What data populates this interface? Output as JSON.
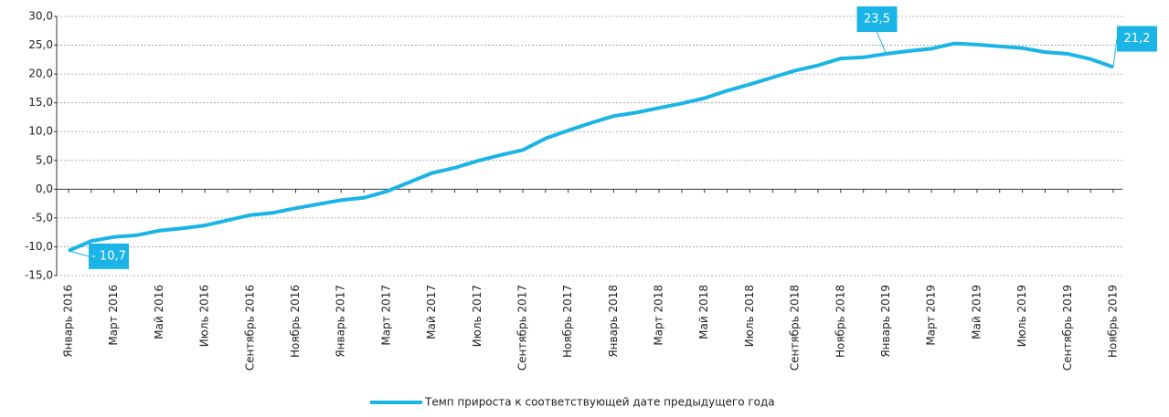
{
  "chart_data": {
    "type": "line",
    "categories": [
      "Январь 2016",
      null,
      "Март 2016",
      null,
      "Май 2016",
      null,
      "Июль 2016",
      null,
      "Сентябрь 2016",
      null,
      "Ноябрь 2016",
      null,
      "Январь 2017",
      null,
      "Март 2017",
      null,
      "Май 2017",
      null,
      "Июль 2017",
      null,
      "Сентябрь 2017",
      null,
      "Ноябрь 2017",
      null,
      "Январь 2018",
      null,
      "Март 2018",
      null,
      "Май 2018",
      null,
      "Июль 2018",
      null,
      "Сентябрь 2018",
      null,
      "Ноябрь 2018",
      null,
      "Январь 2019",
      null,
      "Март 2019",
      null,
      "Май 2019",
      null,
      "Июль 2019",
      null,
      "Сентябрь 2019",
      null,
      "Ноябрь 2019"
    ],
    "series": [
      {
        "name": "Темп прироста к соответствующей дате предыдущего года",
        "color": "#1ab4e6",
        "values": [
          -10.7,
          -9.0,
          -8.3,
          -8.0,
          -7.2,
          -6.8,
          -6.3,
          -5.4,
          -4.5,
          -4.1,
          -3.3,
          -2.6,
          -1.9,
          -1.5,
          -0.4,
          1.2,
          2.8,
          3.7,
          4.9,
          5.9,
          6.8,
          8.8,
          10.2,
          11.5,
          12.7,
          13.3,
          14.1,
          14.9,
          15.8,
          17.1,
          18.2,
          19.4,
          20.6,
          21.5,
          22.7,
          22.9,
          23.5,
          24.0,
          24.4,
          25.3,
          25.1,
          24.8,
          24.5,
          23.8,
          23.5,
          22.6,
          21.2
        ],
        "value_labels": [
          "- 10,7",
          null,
          null,
          null,
          null,
          null,
          null,
          null,
          null,
          null,
          null,
          null,
          null,
          null,
          null,
          null,
          null,
          null,
          null,
          null,
          null,
          null,
          null,
          null,
          null,
          null,
          null,
          null,
          null,
          null,
          null,
          null,
          null,
          null,
          null,
          null,
          "23,5",
          null,
          null,
          null,
          null,
          null,
          null,
          null,
          null,
          null,
          "21,2"
        ]
      }
    ],
    "ylim": [
      -15,
      30
    ],
    "yticks": [
      {
        "value": -15,
        "label": "-15,0"
      },
      {
        "value": -10,
        "label": "-10,0"
      },
      {
        "value": -5,
        "label": "-5,0"
      },
      {
        "value": 0,
        "label": "0,0"
      },
      {
        "value": 5,
        "label": "5,0"
      },
      {
        "value": 10,
        "label": "10,0"
      },
      {
        "value": 15,
        "label": "15,0"
      },
      {
        "value": 20,
        "label": "20,0"
      },
      {
        "value": 25,
        "label": "25,0"
      },
      {
        "value": 30,
        "label": "30,0"
      }
    ],
    "grid": true,
    "legend": "bottom"
  }
}
